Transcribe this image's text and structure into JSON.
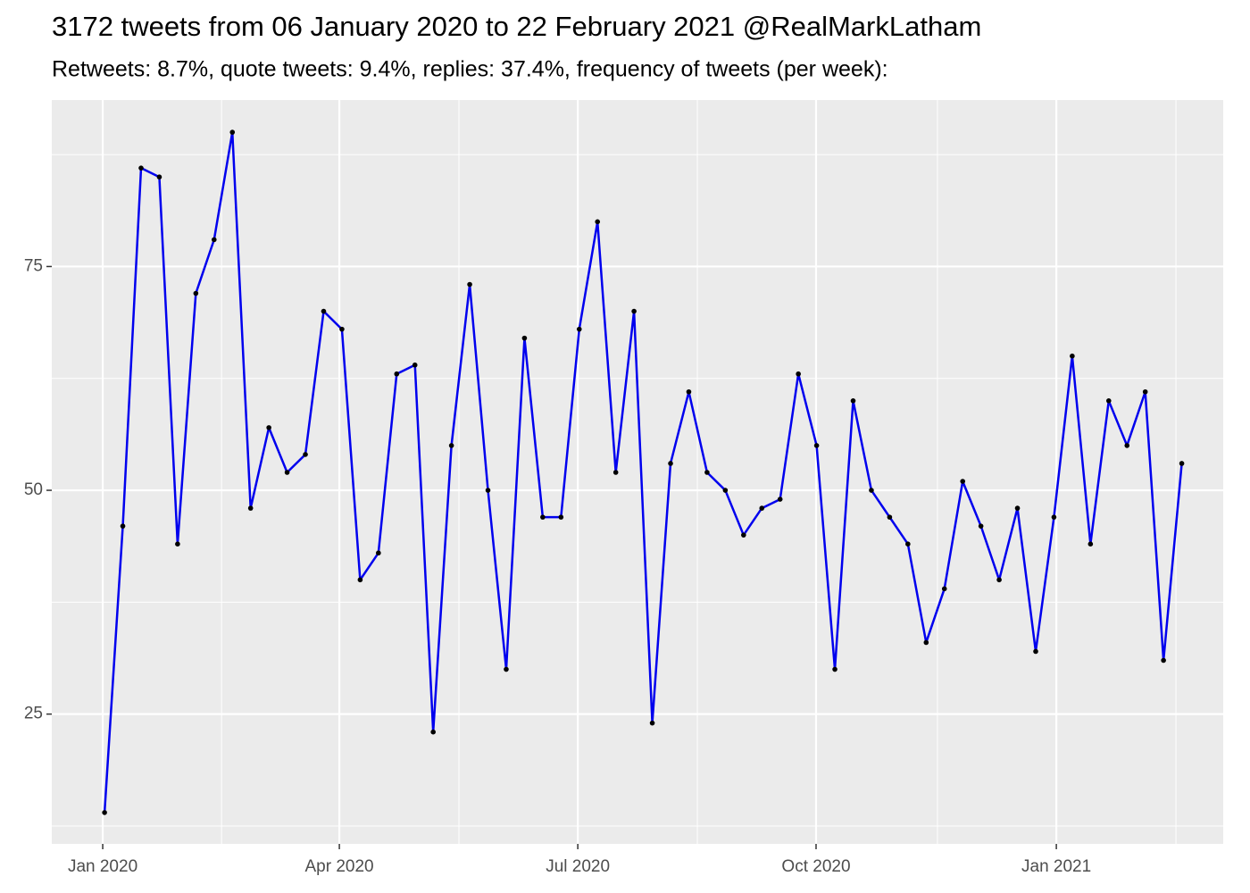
{
  "chart_data": {
    "type": "line",
    "title": "3172 tweets from 06 January 2020 to 22 February 2021 @RealMarkLatham",
    "subtitle": "Retweets: 8.7%, quote tweets: 9.4%, replies: 37.4%, frequency of tweets (per week):",
    "x": [
      0,
      1,
      2,
      3,
      4,
      5,
      6,
      7,
      8,
      9,
      10,
      11,
      12,
      13,
      14,
      15,
      16,
      17,
      18,
      19,
      20,
      21,
      22,
      23,
      24,
      25,
      26,
      27,
      28,
      29,
      30,
      31,
      32,
      33,
      34,
      35,
      36,
      37,
      38,
      39,
      40,
      41,
      42,
      43,
      44,
      45,
      46,
      47,
      48,
      49,
      50,
      51,
      52,
      53,
      54,
      55,
      56,
      57,
      58,
      59
    ],
    "values": [
      14,
      46,
      86,
      85,
      44,
      72,
      78,
      90,
      48,
      57,
      52,
      54,
      70,
      68,
      40,
      43,
      63,
      64,
      23,
      55,
      73,
      50,
      30,
      67,
      47,
      47,
      68,
      80,
      52,
      70,
      24,
      53,
      61,
      52,
      50,
      45,
      48,
      49,
      63,
      55,
      30,
      60,
      50,
      47,
      44,
      33,
      39,
      51,
      46,
      40,
      48,
      32,
      47,
      65,
      44,
      60,
      55,
      61,
      31,
      53
    ],
    "color": "#0000ee",
    "point_color": "#000000",
    "xlim": [
      -2.89,
      61.27
    ],
    "xticks": [
      {
        "value": -0.1,
        "label": "Jan 2020"
      },
      {
        "value": 12.86,
        "label": "Apr 2020"
      },
      {
        "value": 25.92,
        "label": "Jul 2020"
      },
      {
        "value": 38.97,
        "label": "Oct 2020"
      },
      {
        "value": 52.13,
        "label": "Jan 2021"
      }
    ],
    "xminor": [
      6.41,
      19.41,
      32.47,
      45.62,
      58.68
    ],
    "ylim": [
      10.5,
      93.6
    ],
    "yticks": [
      25,
      50,
      75
    ],
    "yminor": [
      12.5,
      37.5,
      62.5,
      87.5
    ],
    "grid": true
  }
}
